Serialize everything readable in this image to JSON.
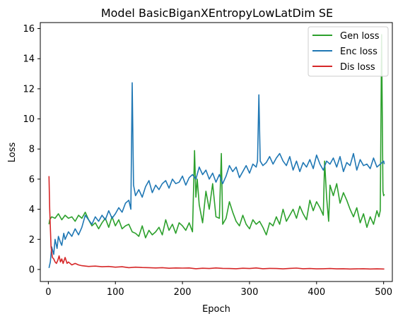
{
  "chart_data": {
    "type": "line",
    "title": "Model BasicBiganXEntropyLowLatDim SE",
    "xlabel": "Epoch",
    "ylabel": "Loss",
    "xlim": [
      -12,
      513
    ],
    "ylim": [
      -0.8,
      16.4
    ],
    "xticks": [
      0,
      100,
      200,
      300,
      400,
      500
    ],
    "yticks": [
      0,
      2,
      4,
      6,
      8,
      10,
      12,
      14,
      16
    ],
    "grid": false,
    "legend_position": "top-right",
    "series": [
      {
        "name": "Gen loss",
        "color": "#2ca02c",
        "x": [
          1,
          2,
          5,
          10,
          15,
          20,
          25,
          30,
          35,
          40,
          45,
          50,
          55,
          60,
          65,
          70,
          75,
          80,
          85,
          90,
          95,
          100,
          105,
          110,
          115,
          120,
          125,
          130,
          135,
          140,
          145,
          150,
          155,
          160,
          165,
          170,
          175,
          180,
          185,
          190,
          195,
          200,
          205,
          210,
          215,
          218,
          220,
          222,
          225,
          230,
          235,
          240,
          245,
          250,
          255,
          258,
          260,
          265,
          270,
          275,
          280,
          285,
          290,
          295,
          300,
          305,
          310,
          315,
          320,
          325,
          330,
          335,
          340,
          345,
          350,
          355,
          360,
          365,
          370,
          375,
          380,
          385,
          390,
          395,
          400,
          405,
          410,
          412,
          415,
          418,
          420,
          425,
          430,
          435,
          440,
          445,
          450,
          455,
          460,
          465,
          470,
          475,
          480,
          485,
          490,
          493,
          495,
          497,
          499,
          500,
          501
        ],
        "values": [
          3.0,
          3.3,
          3.5,
          3.4,
          3.7,
          3.3,
          3.6,
          3.4,
          3.5,
          3.2,
          3.6,
          3.4,
          3.8,
          3.3,
          2.9,
          3.1,
          2.7,
          3.1,
          3.4,
          2.8,
          3.5,
          2.9,
          3.3,
          2.7,
          2.9,
          3.0,
          2.5,
          2.4,
          2.2,
          2.9,
          2.1,
          2.6,
          2.3,
          2.5,
          2.8,
          2.3,
          3.3,
          2.6,
          3.0,
          2.4,
          3.1,
          2.9,
          2.6,
          3.1,
          2.5,
          7.9,
          4.8,
          6.0,
          4.3,
          3.1,
          5.2,
          4.0,
          5.7,
          3.5,
          3.4,
          7.7,
          3.0,
          3.4,
          4.5,
          3.8,
          3.2,
          2.9,
          3.6,
          3.0,
          2.7,
          3.3,
          3.0,
          3.2,
          2.8,
          2.3,
          3.1,
          2.9,
          3.5,
          3.0,
          4.0,
          3.2,
          3.6,
          4.0,
          3.4,
          4.2,
          3.7,
          3.3,
          4.6,
          3.9,
          4.5,
          4.1,
          3.6,
          7.2,
          4.8,
          3.2,
          5.6,
          4.9,
          5.7,
          4.4,
          5.1,
          4.6,
          4.0,
          3.5,
          4.1,
          3.1,
          3.7,
          2.8,
          3.5,
          3.0,
          3.9,
          3.5,
          3.9,
          15.6,
          5.2,
          4.9,
          5.0
        ]
      },
      {
        "name": "Enc loss",
        "color": "#1f77b4",
        "x": [
          1,
          3,
          5,
          8,
          10,
          13,
          15,
          18,
          20,
          23,
          25,
          30,
          35,
          40,
          45,
          50,
          55,
          60,
          65,
          70,
          75,
          80,
          85,
          90,
          95,
          100,
          105,
          110,
          115,
          120,
          123,
          125,
          127,
          130,
          135,
          140,
          145,
          150,
          155,
          160,
          165,
          170,
          175,
          180,
          185,
          190,
          195,
          200,
          205,
          210,
          215,
          220,
          225,
          230,
          235,
          240,
          245,
          250,
          255,
          260,
          265,
          270,
          275,
          280,
          285,
          290,
          295,
          300,
          305,
          310,
          312,
          314,
          316,
          320,
          325,
          330,
          335,
          340,
          345,
          350,
          355,
          360,
          365,
          370,
          375,
          380,
          385,
          390,
          395,
          400,
          405,
          410,
          415,
          420,
          425,
          430,
          435,
          440,
          445,
          450,
          455,
          460,
          465,
          470,
          475,
          480,
          485,
          490,
          495,
          500,
          501
        ],
        "values": [
          0.1,
          0.5,
          1.5,
          1.0,
          2.0,
          1.4,
          2.2,
          1.8,
          1.6,
          2.4,
          2.0,
          2.5,
          2.2,
          2.7,
          2.3,
          2.8,
          3.6,
          3.3,
          3.0,
          3.5,
          3.2,
          3.6,
          3.3,
          3.9,
          3.4,
          3.7,
          4.1,
          3.8,
          4.4,
          4.6,
          4.0,
          12.4,
          5.6,
          4.9,
          5.3,
          4.8,
          5.5,
          5.9,
          5.1,
          5.6,
          5.3,
          5.7,
          5.9,
          5.4,
          6.0,
          5.7,
          5.8,
          6.2,
          5.6,
          6.1,
          6.3,
          6.0,
          6.8,
          6.3,
          6.6,
          6.0,
          6.4,
          5.8,
          6.3,
          5.7,
          6.2,
          6.9,
          6.5,
          6.8,
          6.1,
          6.5,
          6.9,
          6.4,
          7.0,
          6.8,
          7.2,
          11.6,
          7.2,
          6.9,
          7.1,
          7.5,
          7.0,
          7.4,
          7.7,
          7.2,
          6.9,
          7.5,
          6.6,
          7.2,
          6.5,
          7.1,
          6.8,
          7.3,
          6.7,
          7.6,
          7.0,
          6.6,
          7.2,
          7.0,
          7.4,
          6.8,
          7.5,
          6.5,
          7.1,
          6.9,
          7.7,
          6.6,
          7.3,
          6.9,
          7.0,
          6.7,
          7.4,
          6.8,
          7.0,
          7.2,
          7.0
        ]
      },
      {
        "name": "Dis loss",
        "color": "#d62728",
        "x": [
          1,
          2,
          4,
          6,
          8,
          10,
          12,
          14,
          16,
          18,
          20,
          22,
          25,
          28,
          30,
          35,
          40,
          45,
          50,
          60,
          70,
          80,
          90,
          100,
          110,
          120,
          130,
          140,
          150,
          160,
          170,
          180,
          190,
          200,
          210,
          220,
          230,
          240,
          250,
          260,
          270,
          280,
          290,
          300,
          310,
          320,
          330,
          340,
          350,
          360,
          370,
          380,
          390,
          400,
          410,
          420,
          430,
          440,
          450,
          460,
          470,
          480,
          490,
          500,
          501
        ],
        "values": [
          6.2,
          4.0,
          1.5,
          0.8,
          0.7,
          0.5,
          0.4,
          0.6,
          0.9,
          0.5,
          0.7,
          0.4,
          0.8,
          0.4,
          0.5,
          0.3,
          0.4,
          0.3,
          0.25,
          0.2,
          0.22,
          0.18,
          0.2,
          0.15,
          0.18,
          0.12,
          0.15,
          0.13,
          0.12,
          0.1,
          0.12,
          0.08,
          0.1,
          0.09,
          0.1,
          0.05,
          0.08,
          0.06,
          0.1,
          0.07,
          0.06,
          0.05,
          0.08,
          0.06,
          0.1,
          0.05,
          0.07,
          0.06,
          0.04,
          0.07,
          0.09,
          0.05,
          0.06,
          0.04,
          0.05,
          0.06,
          0.04,
          0.05,
          0.03,
          0.04,
          0.05,
          0.03,
          0.04,
          0.03,
          0.03
        ]
      }
    ]
  }
}
